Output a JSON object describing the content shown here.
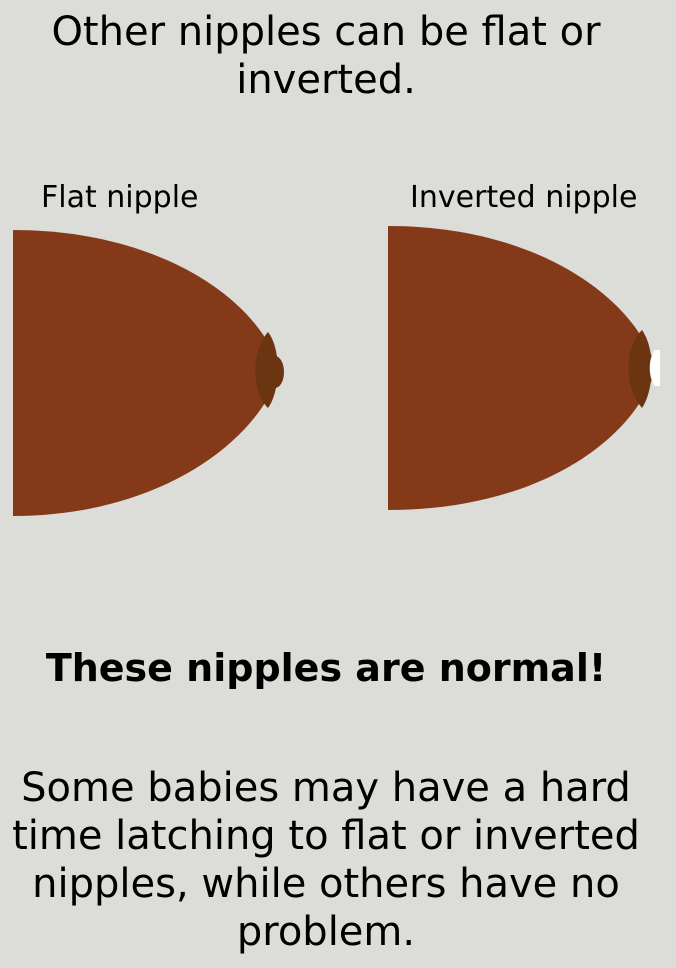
{
  "headline": "Other nipples can be flat or inverted.",
  "diagrams": {
    "flat_label": "Flat nipple",
    "inverted_label": "Inverted nipple"
  },
  "emphasis": "These nipples are normal!",
  "body": "Some babies may have a hard time latching to flat or inverted nipples, while others have no problem.",
  "colors": {
    "background": "#dcdcd8",
    "skin": "#843a18",
    "areola": "#6a3510",
    "nipple_tip": "#ffffff"
  }
}
